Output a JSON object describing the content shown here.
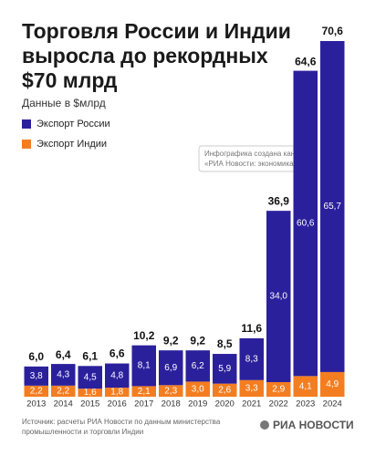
{
  "chart_data": {
    "type": "stacked-bar",
    "title": [
      "Торговля России и Индии",
      "выросла до рекордных",
      "$70 млрд"
    ],
    "subtitle": "Данные в $млрд",
    "categories": [
      "2013",
      "2014",
      "2015",
      "2016",
      "2017",
      "2018",
      "2019",
      "2020",
      "2021",
      "2022",
      "2023",
      "2024"
    ],
    "series": [
      {
        "name": "Экспорт России",
        "color": "#2b209c",
        "values": [
          3.8,
          4.3,
          4.5,
          4.8,
          8.1,
          6.9,
          6.2,
          5.9,
          8.3,
          34.0,
          60.6,
          65.7
        ],
        "value_labels": [
          "3,8",
          "4,3",
          "4,5",
          "4,8",
          "8,1",
          "6,9",
          "6,2",
          "5,9",
          "8,3",
          "34,0",
          "60,6",
          "65,7"
        ]
      },
      {
        "name": "Экспорт Индии",
        "color": "#f47d20",
        "values": [
          2.2,
          2.2,
          1.6,
          1.8,
          2.1,
          2.3,
          3.0,
          2.6,
          3.3,
          2.9,
          4.1,
          4.9
        ],
        "value_labels": [
          "2,2",
          "2,2",
          "1,6",
          "1,8",
          "2,1",
          "2,3",
          "3,0",
          "2,6",
          "3,3",
          "2,9",
          "4,1",
          "4,9"
        ]
      }
    ],
    "totals": [
      6.0,
      6.4,
      6.1,
      6.6,
      10.2,
      9.2,
      9.2,
      8.5,
      11.6,
      36.9,
      64.6,
      70.6
    ],
    "total_labels": [
      "6,0",
      "6,4",
      "6,1",
      "6,6",
      "10,2",
      "9,2",
      "9,2",
      "8,5",
      "11,6",
      "36,9",
      "64,6",
      "70,6"
    ],
    "annotation": [
      "Инфографика создана каналом",
      "«РИА Новости: экономика»"
    ],
    "source": [
      "Источник: расчеты РИА Новости по данным министерства",
      "промышленности и торговли Индии"
    ],
    "logo": "РИА НОВОСТИ"
  }
}
